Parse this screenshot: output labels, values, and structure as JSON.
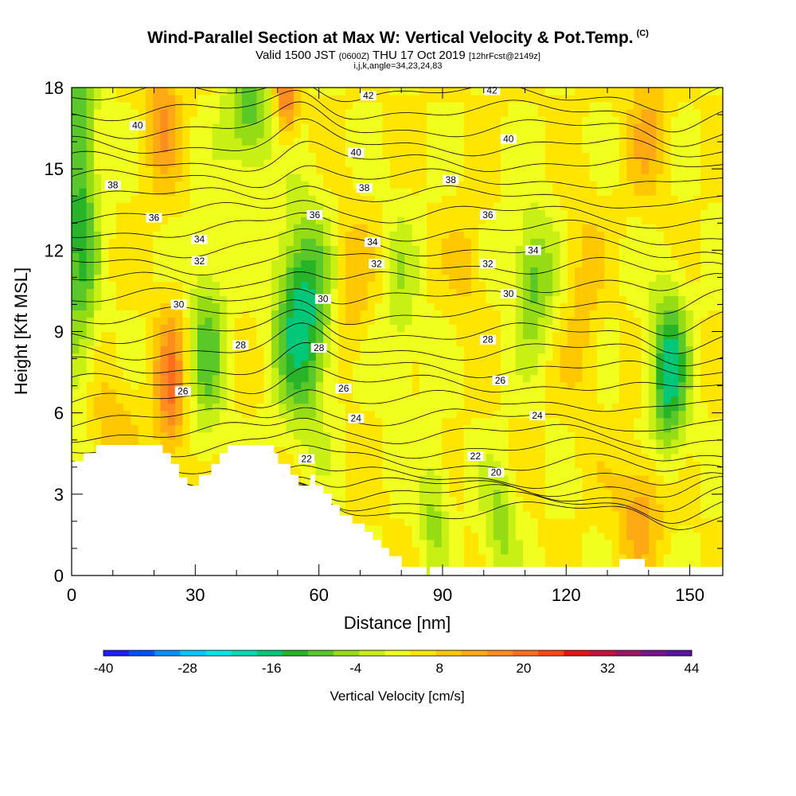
{
  "title": {
    "main": "Wind-Parallel Section at Max W: Vertical Velocity & Pot.Temp.",
    "copyright": "(C)",
    "valid_prefix": "Valid 1500 JST",
    "valid_zulu": "(0600Z)",
    "valid_date": "THU 17 Oct 2019",
    "forecast": "[12hrFcst@2149z]",
    "indices": "i,j,k,angle=34,23,24,83"
  },
  "chart_data": {
    "type": "heatmap",
    "title": "Wind-Parallel Section at Max W: Vertical Velocity & Pot.Temp.",
    "xlabel": "Distance [nm]",
    "ylabel": "Height [Kft MSL]",
    "xlim": [
      0,
      158
    ],
    "ylim": [
      0,
      18
    ],
    "xticks": [
      0,
      30,
      60,
      90,
      120,
      150
    ],
    "yticks": [
      0,
      3,
      6,
      9,
      12,
      15,
      18
    ],
    "colorbar": {
      "label": "Vertical Velocity [cm/s]",
      "ticks": [
        -40,
        -28,
        -16,
        -4,
        8,
        20,
        32,
        44
      ],
      "colors": [
        "#1e1eff",
        "#0050ff",
        "#0090ff",
        "#00c8ff",
        "#00e6e6",
        "#00dcb4",
        "#00c878",
        "#28b428",
        "#5ac828",
        "#96dc14",
        "#c8f014",
        "#f0ff1e",
        "#ffe600",
        "#ffc800",
        "#ffaa14",
        "#ff8c1e",
        "#ff6e1e",
        "#ff4614",
        "#e61414",
        "#c8143c",
        "#a01464",
        "#78148c",
        "#5a14a0"
      ]
    },
    "contour_labels": [
      {
        "x": 16,
        "y": 16.6,
        "label": "40"
      },
      {
        "x": 10,
        "y": 14.4,
        "label": "38"
      },
      {
        "x": 20,
        "y": 13.2,
        "label": "36"
      },
      {
        "x": 31,
        "y": 12.4,
        "label": "34"
      },
      {
        "x": 31,
        "y": 11.6,
        "label": "32"
      },
      {
        "x": 26,
        "y": 10.0,
        "label": "30"
      },
      {
        "x": 41,
        "y": 8.5,
        "label": "28"
      },
      {
        "x": 27,
        "y": 6.8,
        "label": "26"
      },
      {
        "x": 72,
        "y": 17.7,
        "label": "42"
      },
      {
        "x": 69,
        "y": 15.6,
        "label": "40"
      },
      {
        "x": 71,
        "y": 14.3,
        "label": "38"
      },
      {
        "x": 59,
        "y": 13.3,
        "label": "36"
      },
      {
        "x": 73,
        "y": 12.3,
        "label": "34"
      },
      {
        "x": 74,
        "y": 11.5,
        "label": "32"
      },
      {
        "x": 61,
        "y": 10.2,
        "label": "30"
      },
      {
        "x": 60,
        "y": 8.4,
        "label": "28"
      },
      {
        "x": 66,
        "y": 6.9,
        "label": "26"
      },
      {
        "x": 69,
        "y": 5.8,
        "label": "24"
      },
      {
        "x": 57,
        "y": 4.3,
        "label": "22"
      },
      {
        "x": 102,
        "y": 17.9,
        "label": "42"
      },
      {
        "x": 106,
        "y": 16.1,
        "label": "40"
      },
      {
        "x": 92,
        "y": 14.6,
        "label": "38"
      },
      {
        "x": 101,
        "y": 13.3,
        "label": "36"
      },
      {
        "x": 112,
        "y": 12.0,
        "label": "34"
      },
      {
        "x": 101,
        "y": 11.5,
        "label": "32"
      },
      {
        "x": 106,
        "y": 10.4,
        "label": "30"
      },
      {
        "x": 101,
        "y": 8.7,
        "label": "28"
      },
      {
        "x": 104,
        "y": 7.2,
        "label": "26"
      },
      {
        "x": 113,
        "y": 5.9,
        "label": "24"
      },
      {
        "x": 98,
        "y": 4.4,
        "label": "22"
      },
      {
        "x": 103,
        "y": 3.8,
        "label": "20"
      }
    ]
  }
}
